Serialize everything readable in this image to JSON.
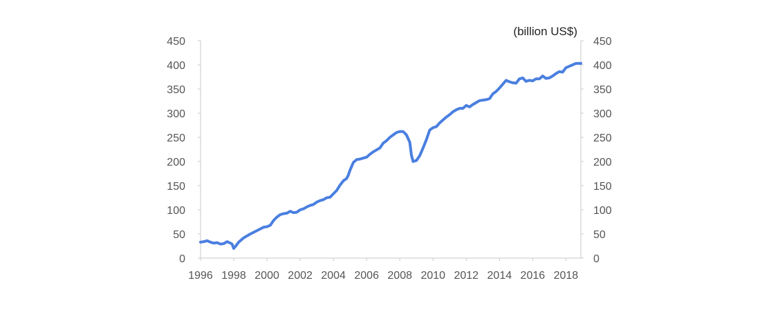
{
  "chart_data": {
    "type": "line",
    "unit_label": "(billion US$)",
    "y_ticks": [
      0,
      50,
      100,
      150,
      200,
      250,
      300,
      350,
      400,
      450
    ],
    "x_ticks": [
      1996,
      1998,
      2000,
      2002,
      2004,
      2006,
      2008,
      2010,
      2012,
      2014,
      2016,
      2018
    ],
    "ylim": [
      0,
      450
    ],
    "xlim": [
      1996,
      2018.9
    ],
    "grid": false,
    "colors": {
      "line": "#4a7fe0",
      "axis": "#c8c8c8",
      "text": "#555555"
    },
    "series": [
      {
        "x": [
          1996.0,
          1996.2,
          1996.4,
          1996.6,
          1996.8,
          1997.0,
          1997.2,
          1997.4,
          1997.6,
          1997.8,
          1997.9,
          1998.0,
          1998.1,
          1998.3,
          1998.6,
          1999.0,
          1999.4,
          1999.8,
          2000.0,
          2000.2,
          2000.4,
          2000.6,
          2000.8,
          2001.0,
          2001.2,
          2001.4,
          2001.6,
          2001.8,
          2002.0,
          2002.2,
          2002.4,
          2002.6,
          2002.8,
          2003.0,
          2003.2,
          2003.4,
          2003.6,
          2003.8,
          2004.0,
          2004.2,
          2004.4,
          2004.6,
          2004.8,
          2004.9,
          2005.0,
          2005.2,
          2005.4,
          2005.6,
          2005.8,
          2006.0,
          2006.2,
          2006.4,
          2006.6,
          2006.8,
          2007.0,
          2007.2,
          2007.4,
          2007.6,
          2007.8,
          2008.0,
          2008.2,
          2008.4,
          2008.6,
          2008.7,
          2008.8,
          2009.0,
          2009.2,
          2009.4,
          2009.6,
          2009.8,
          2010.0,
          2010.2,
          2010.4,
          2010.6,
          2010.8,
          2011.0,
          2011.2,
          2011.4,
          2011.6,
          2011.8,
          2012.0,
          2012.2,
          2012.4,
          2012.6,
          2012.8,
          2013.0,
          2013.2,
          2013.4,
          2013.6,
          2013.8,
          2014.0,
          2014.2,
          2014.4,
          2014.6,
          2014.8,
          2015.0,
          2015.2,
          2015.4,
          2015.6,
          2015.8,
          2016.0,
          2016.2,
          2016.4,
          2016.6,
          2016.8,
          2017.0,
          2017.2,
          2017.4,
          2017.6,
          2017.8,
          2018.0,
          2018.2,
          2018.4,
          2018.6,
          2018.9
        ],
        "values": [
          33,
          34,
          36,
          33,
          31,
          32,
          29,
          30,
          34,
          31,
          29,
          20,
          24,
          33,
          42,
          50,
          57,
          64,
          65,
          68,
          78,
          85,
          90,
          92,
          93,
          97,
          94,
          95,
          100,
          102,
          106,
          109,
          111,
          116,
          119,
          121,
          125,
          126,
          133,
          140,
          151,
          160,
          165,
          172,
          182,
          198,
          204,
          205,
          207,
          209,
          215,
          220,
          224,
          228,
          238,
          243,
          250,
          255,
          260,
          262,
          262,
          255,
          240,
          213,
          200,
          202,
          212,
          228,
          245,
          265,
          270,
          272,
          280,
          286,
          292,
          297,
          303,
          307,
          310,
          310,
          316,
          313,
          318,
          322,
          326,
          327,
          328,
          330,
          340,
          345,
          352,
          360,
          368,
          365,
          363,
          362,
          371,
          373,
          366,
          368,
          367,
          371,
          371,
          377,
          372,
          373,
          377,
          382,
          386,
          385,
          394,
          397,
          400,
          403,
          403
        ]
      }
    ]
  }
}
